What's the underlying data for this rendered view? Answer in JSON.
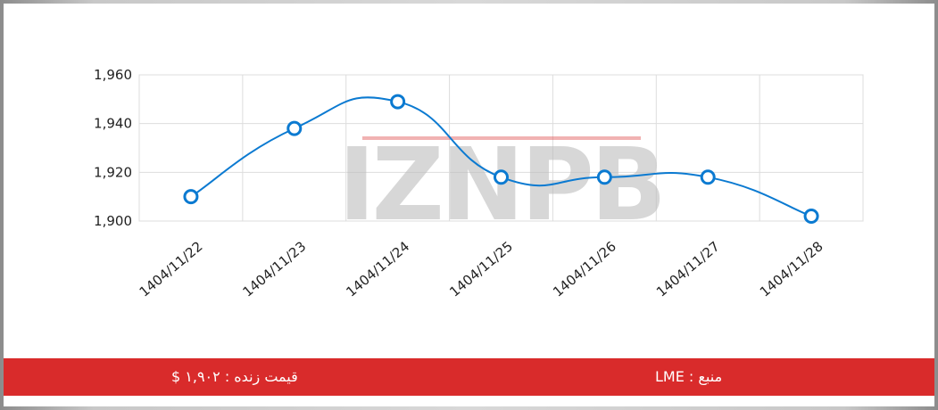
{
  "watermark": {
    "text": "IZNPB"
  },
  "footer": {
    "price_text": "قیمت زنده : ۱,۹۰۲ $",
    "source_text": "منبع : LME"
  },
  "colors": {
    "line": "#0b7ad1",
    "bar": "#d92b2b",
    "grid": "#dddddd"
  },
  "chart_data": {
    "type": "line",
    "title": "",
    "xlabel": "",
    "ylabel": "",
    "categories": [
      "1404/11/22",
      "1404/11/23",
      "1404/11/24",
      "1404/11/25",
      "1404/11/26",
      "1404/11/27",
      "1404/11/28"
    ],
    "series": [
      {
        "values": [
          1910,
          1938,
          1949,
          1918,
          1918,
          1918,
          1902
        ]
      }
    ],
    "ylim": [
      1900,
      1960
    ],
    "yticks": [
      "1,900",
      "1,920",
      "1,940",
      "1,960"
    ],
    "grid": true,
    "legend": "none"
  }
}
